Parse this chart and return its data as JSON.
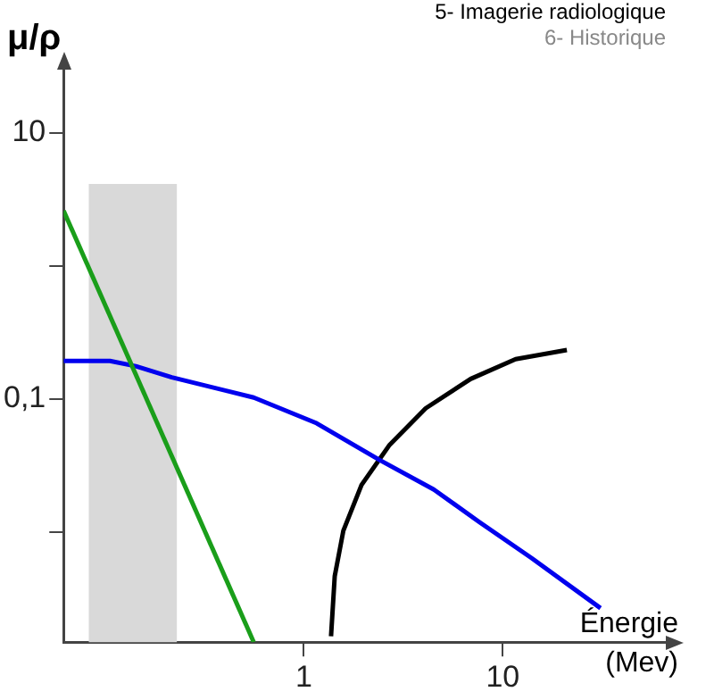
{
  "chart_data": {
    "type": "line",
    "title": "5- Imagerie radiologique",
    "subtitle": "6- Historique",
    "ylabel": "μ/ρ",
    "xlabel": "Énergie (Mev)",
    "log": "xy",
    "grid": false,
    "legend": false,
    "marker": "none",
    "line_style": "solid",
    "xlim": [
      0.062,
      66
    ],
    "xticks": [
      1,
      10
    ],
    "ylim": [
      0.0015,
      30
    ],
    "yticks": [
      10,
      {
        "value": 1,
        "label": null
      },
      {
        "value": 0.1,
        "label": "0,1"
      },
      {
        "value": 0.01,
        "label": null
      }
    ],
    "bands": [
      {
        "axis": "x",
        "from": 0.083,
        "to": 0.23,
        "color": "#d9d9d9"
      }
    ],
    "series": [
      {
        "color": "#1a9e1a",
        "x": [
          0.062,
          0.56
        ],
        "values": [
          2.6,
          0.0015
        ]
      },
      {
        "color": "#0000ee",
        "x": [
          0.062,
          0.106,
          0.143,
          0.217,
          0.56,
          1.16,
          2.4,
          4.5,
          7.6,
          14,
          31
        ],
        "values": [
          0.194,
          0.194,
          0.177,
          0.146,
          0.103,
          0.066,
          0.035,
          0.021,
          0.012,
          0.0064,
          0.0027
        ]
      },
      {
        "color": "#000000",
        "x": [
          1.37,
          1.43,
          1.58,
          1.95,
          2.7,
          4.1,
          6.9,
          11.6,
          21
        ],
        "values": [
          0.00166,
          0.0047,
          0.0103,
          0.0227,
          0.0455,
          0.0855,
          0.142,
          0.2,
          0.234
        ]
      }
    ]
  }
}
